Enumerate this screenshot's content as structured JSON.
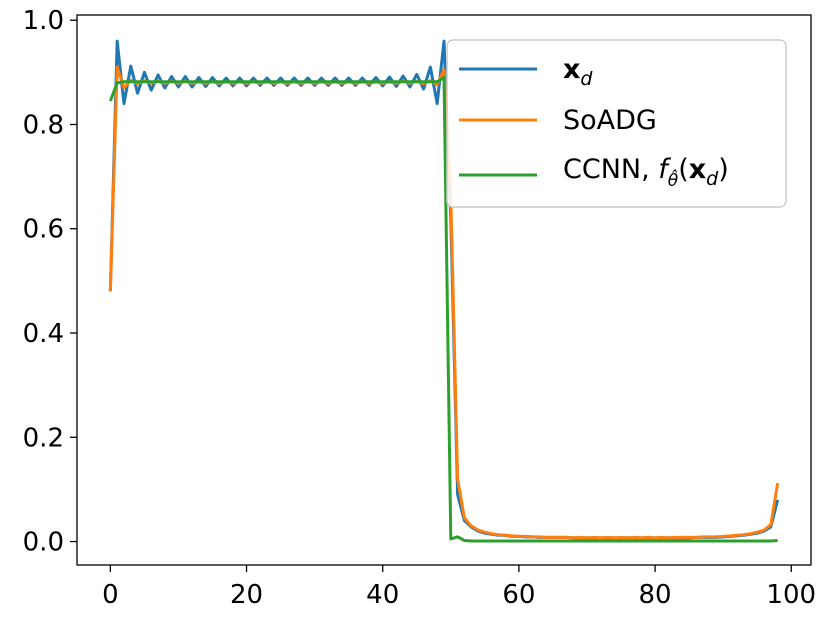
{
  "chart_data": {
    "type": "line",
    "xlim": [
      -4.9,
      102.9
    ],
    "ylim": [
      -0.045,
      1.01
    ],
    "x_ticks": [
      0,
      20,
      40,
      60,
      80,
      100
    ],
    "y_ticks": [
      0.0,
      0.2,
      0.4,
      0.6,
      0.8,
      1.0
    ],
    "x_tick_labels": [
      "0",
      "20",
      "40",
      "60",
      "80",
      "100"
    ],
    "y_tick_labels": [
      "0.0",
      "0.2",
      "0.4",
      "0.6",
      "0.8",
      "1.0"
    ],
    "grid": false,
    "legend": "top-right",
    "x": [
      0,
      1,
      2,
      3,
      4,
      5,
      6,
      7,
      8,
      9,
      10,
      11,
      12,
      13,
      14,
      15,
      16,
      17,
      18,
      19,
      20,
      21,
      22,
      23,
      24,
      25,
      26,
      27,
      28,
      29,
      30,
      31,
      32,
      33,
      34,
      35,
      36,
      37,
      38,
      39,
      40,
      41,
      42,
      43,
      44,
      45,
      46,
      47,
      48,
      49,
      50,
      51,
      52,
      53,
      54,
      55,
      56,
      57,
      58,
      59,
      60,
      61,
      62,
      63,
      64,
      65,
      66,
      67,
      68,
      69,
      70,
      71,
      72,
      73,
      74,
      75,
      76,
      77,
      78,
      79,
      80,
      81,
      82,
      83,
      84,
      85,
      86,
      87,
      88,
      89,
      90,
      91,
      92,
      93,
      94,
      95,
      96,
      97,
      98
    ],
    "series": [
      {
        "name": "x_d",
        "color": "#1f77b4",
        "values": [
          0.48,
          0.96,
          0.84,
          0.912,
          0.86,
          0.9,
          0.866,
          0.895,
          0.87,
          0.892,
          0.872,
          0.892,
          0.872,
          0.89,
          0.873,
          0.89,
          0.874,
          0.889,
          0.874,
          0.889,
          0.874,
          0.889,
          0.875,
          0.889,
          0.875,
          0.889,
          0.875,
          0.889,
          0.875,
          0.889,
          0.875,
          0.889,
          0.875,
          0.889,
          0.875,
          0.889,
          0.875,
          0.889,
          0.875,
          0.89,
          0.874,
          0.891,
          0.873,
          0.893,
          0.872,
          0.896,
          0.868,
          0.91,
          0.84,
          0.96,
          0.62,
          0.09,
          0.04,
          0.028,
          0.02,
          0.016,
          0.014,
          0.012,
          0.012,
          0.01,
          0.01,
          0.009,
          0.009,
          0.008,
          0.008,
          0.008,
          0.008,
          0.008,
          0.007,
          0.007,
          0.007,
          0.007,
          0.007,
          0.007,
          0.007,
          0.007,
          0.007,
          0.007,
          0.007,
          0.007,
          0.007,
          0.007,
          0.007,
          0.007,
          0.007,
          0.007,
          0.008,
          0.008,
          0.008,
          0.008,
          0.009,
          0.01,
          0.011,
          0.012,
          0.014,
          0.016,
          0.02,
          0.028,
          0.08
        ]
      },
      {
        "name": "SoADG",
        "color": "#ff7f0e",
        "values": [
          0.48,
          0.91,
          0.87,
          0.885,
          0.878,
          0.884,
          0.879,
          0.883,
          0.879,
          0.883,
          0.879,
          0.883,
          0.879,
          0.882,
          0.879,
          0.882,
          0.879,
          0.882,
          0.879,
          0.882,
          0.879,
          0.882,
          0.879,
          0.882,
          0.879,
          0.882,
          0.879,
          0.882,
          0.879,
          0.882,
          0.879,
          0.882,
          0.879,
          0.882,
          0.879,
          0.882,
          0.879,
          0.882,
          0.879,
          0.882,
          0.879,
          0.882,
          0.879,
          0.883,
          0.879,
          0.883,
          0.878,
          0.884,
          0.876,
          0.905,
          0.66,
          0.12,
          0.045,
          0.03,
          0.022,
          0.018,
          0.015,
          0.013,
          0.012,
          0.011,
          0.01,
          0.01,
          0.009,
          0.009,
          0.008,
          0.008,
          0.008,
          0.008,
          0.007,
          0.008,
          0.007,
          0.008,
          0.007,
          0.008,
          0.007,
          0.008,
          0.007,
          0.008,
          0.007,
          0.008,
          0.007,
          0.008,
          0.007,
          0.008,
          0.008,
          0.008,
          0.008,
          0.009,
          0.009,
          0.009,
          0.01,
          0.011,
          0.012,
          0.013,
          0.015,
          0.018,
          0.022,
          0.032,
          0.112
        ]
      },
      {
        "name": "CCNN, f_θ̂(x_d)",
        "color": "#2ca02c",
        "values": [
          0.845,
          0.88,
          0.882,
          0.882,
          0.882,
          0.882,
          0.882,
          0.882,
          0.882,
          0.882,
          0.882,
          0.882,
          0.882,
          0.882,
          0.882,
          0.882,
          0.882,
          0.882,
          0.882,
          0.882,
          0.882,
          0.882,
          0.882,
          0.882,
          0.882,
          0.882,
          0.882,
          0.882,
          0.882,
          0.882,
          0.882,
          0.882,
          0.882,
          0.882,
          0.882,
          0.882,
          0.882,
          0.882,
          0.882,
          0.882,
          0.882,
          0.882,
          0.882,
          0.882,
          0.882,
          0.882,
          0.882,
          0.882,
          0.882,
          0.89,
          0.005,
          0.009,
          0.002,
          0.001,
          0.001,
          0.001,
          0.001,
          0.001,
          0.001,
          0.001,
          0.001,
          0.001,
          0.001,
          0.001,
          0.001,
          0.001,
          0.001,
          0.001,
          0.001,
          0.001,
          0.001,
          0.001,
          0.001,
          0.001,
          0.001,
          0.001,
          0.001,
          0.001,
          0.001,
          0.001,
          0.001,
          0.001,
          0.001,
          0.001,
          0.001,
          0.001,
          0.001,
          0.001,
          0.001,
          0.001,
          0.001,
          0.001,
          0.001,
          0.001,
          0.001,
          0.001,
          0.001,
          0.001,
          0.002
        ]
      }
    ]
  },
  "legend": {
    "items": [
      {
        "label_main": "x",
        "label_sub": "d"
      },
      {
        "label_main": "SoADG"
      },
      {
        "label_main": "CCNN, ",
        "fn": "f",
        "fn_sub": "θ̂",
        "paren_open": "(",
        "arg": "x",
        "arg_sub": "d",
        "paren_close": ")"
      }
    ]
  }
}
